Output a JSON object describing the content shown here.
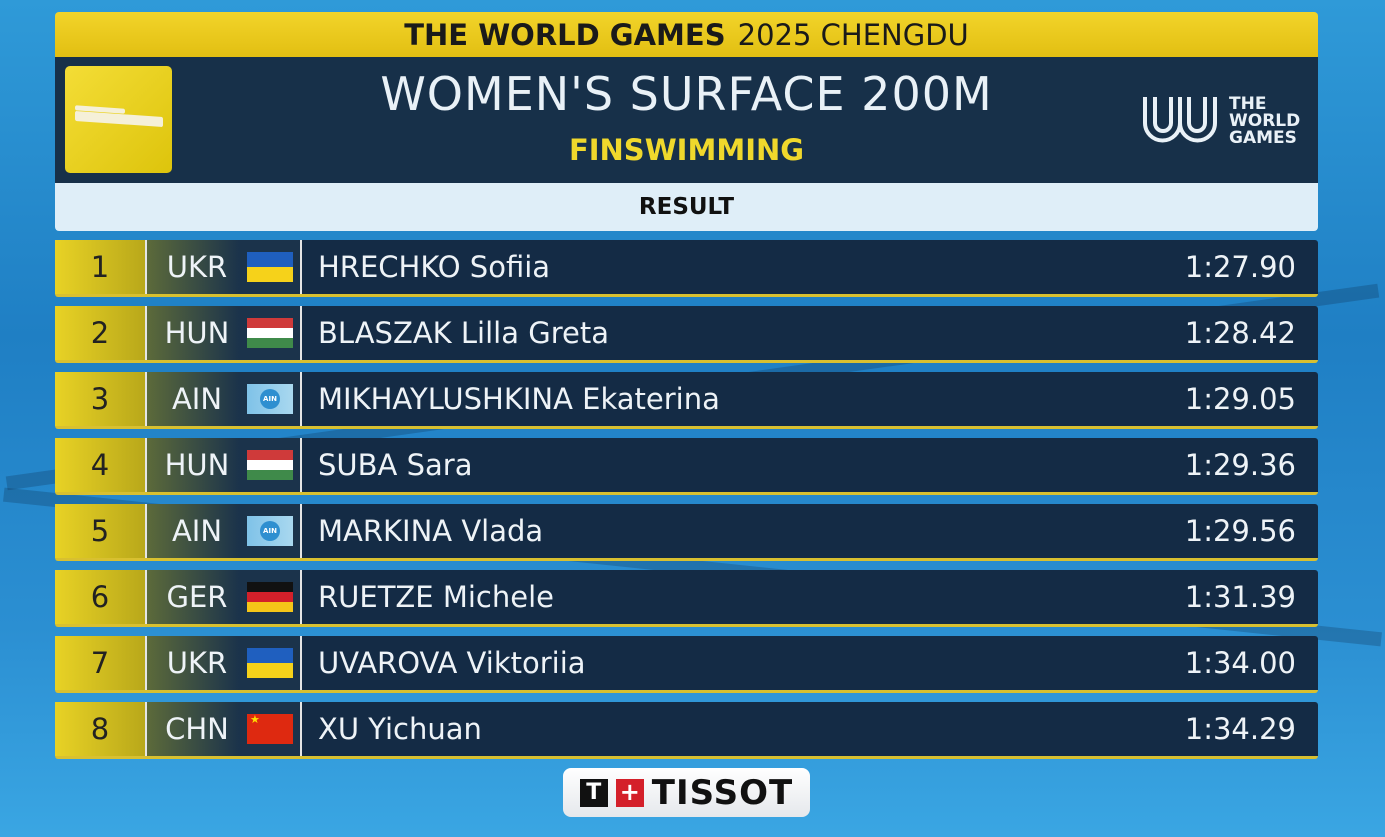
{
  "event_bar": {
    "brand": "THE WORLD GAMES",
    "edition": "2025 CHENGDU"
  },
  "header": {
    "title": "WOMEN'S SURFACE 200M",
    "sport": "FINSWIMMING",
    "logo_text": [
      "THE",
      "WORLD",
      "GAMES"
    ]
  },
  "result_label": "RESULT",
  "colors": {
    "accent_yellow": "#e8cc1e",
    "row_bg": "#142b45"
  },
  "results": [
    {
      "rank": "1",
      "country": "UKR",
      "flag": "ukr",
      "name": "HRECHKO Sofiia",
      "time": "1:27.90"
    },
    {
      "rank": "2",
      "country": "HUN",
      "flag": "hun",
      "name": "BLASZAK Lilla Greta",
      "time": "1:28.42"
    },
    {
      "rank": "3",
      "country": "AIN",
      "flag": "ain",
      "name": "MIKHAYLUSHKINA Ekaterina",
      "time": "1:29.05"
    },
    {
      "rank": "4",
      "country": "HUN",
      "flag": "hun",
      "name": "SUBA Sara",
      "time": "1:29.36"
    },
    {
      "rank": "5",
      "country": "AIN",
      "flag": "ain",
      "name": "MARKINA Vlada",
      "time": "1:29.56"
    },
    {
      "rank": "6",
      "country": "GER",
      "flag": "ger",
      "name": "RUETZE Michele",
      "time": "1:31.39"
    },
    {
      "rank": "7",
      "country": "UKR",
      "flag": "ukr",
      "name": "UVAROVA Viktoriia",
      "time": "1:34.00"
    },
    {
      "rank": "8",
      "country": "CHN",
      "flag": "chn",
      "name": "XU Yichuan",
      "time": "1:34.29"
    }
  ],
  "sponsor": {
    "name": "TISSOT",
    "mark": "T"
  },
  "ain_flag_text": "AIN"
}
